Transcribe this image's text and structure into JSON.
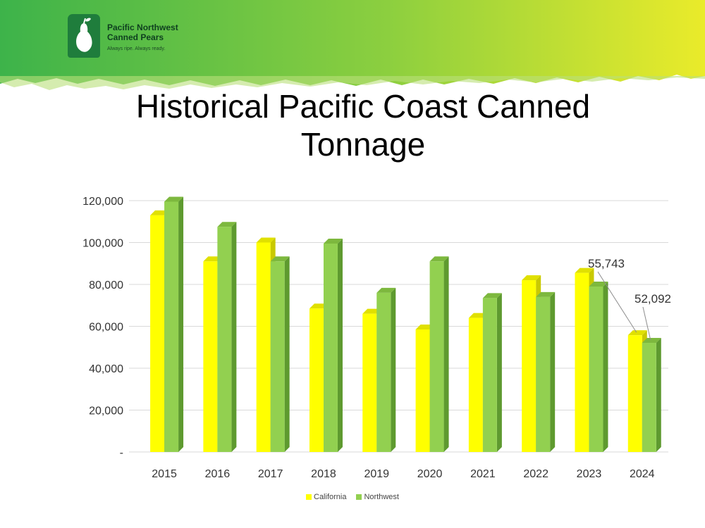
{
  "logo": {
    "name_line1": "Pacific Northwest",
    "name_line2": "Canned Pears",
    "tagline": "Always ripe. Always ready."
  },
  "title": {
    "line1": "Historical Pacific Coast Canned",
    "line2": "Tonnage"
  },
  "colors": {
    "california": "#ffff00",
    "northwest": "#92d050",
    "banner_left": "#3db34a",
    "banner_right": "#eaeb2a"
  },
  "chart_data": {
    "type": "bar",
    "categories": [
      "2015",
      "2016",
      "2017",
      "2018",
      "2019",
      "2020",
      "2021",
      "2022",
      "2023",
      "2024"
    ],
    "series": [
      {
        "name": "California",
        "values": [
          113000,
          91000,
          100000,
          68500,
          66000,
          58500,
          64000,
          82000,
          85500,
          55743
        ]
      },
      {
        "name": "Northwest",
        "values": [
          119500,
          107500,
          91000,
          99500,
          76000,
          91000,
          73500,
          74000,
          79000,
          52092
        ]
      }
    ],
    "ylim": [
      0,
      120000
    ],
    "yticks": [
      "-",
      "20,000",
      "40,000",
      "60,000",
      "80,000",
      "100,000",
      "120,000"
    ],
    "data_labels": [
      {
        "series": "California",
        "category": "2024",
        "text": "55,743"
      },
      {
        "series": "Northwest",
        "category": "2024",
        "text": "52,092"
      }
    ],
    "grid": true,
    "legend_position": "bottom"
  }
}
